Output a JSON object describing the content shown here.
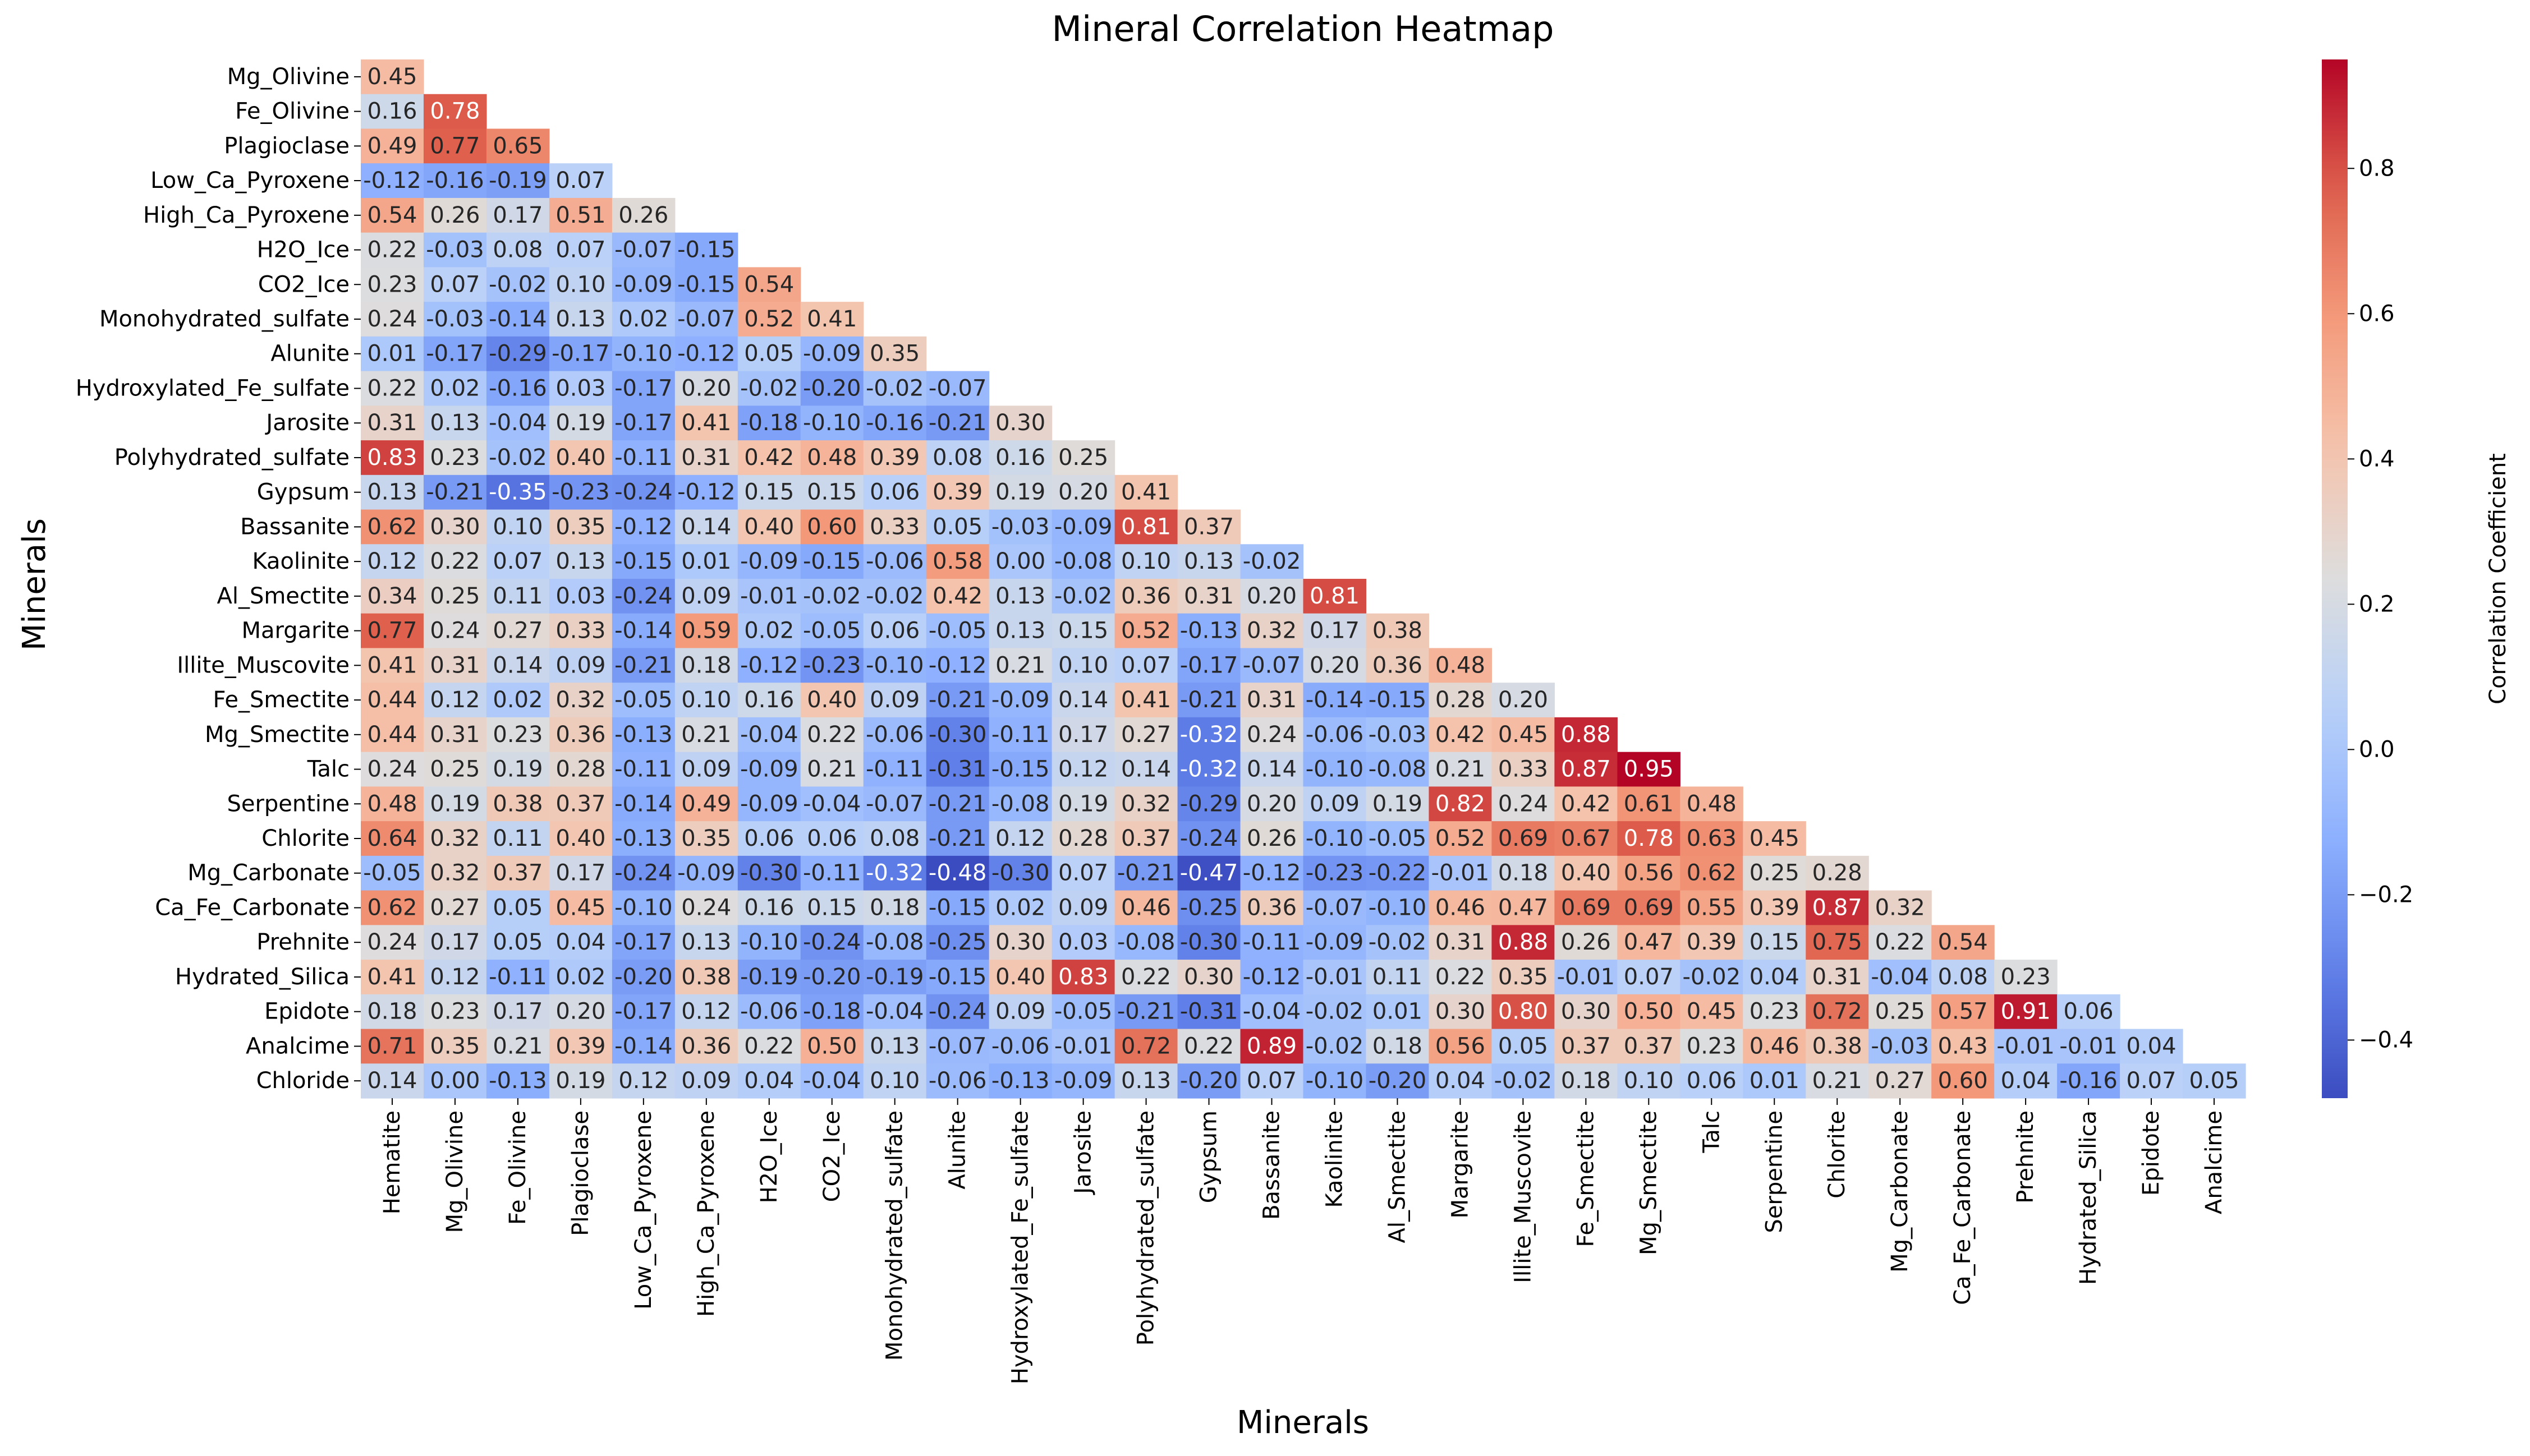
{
  "chart_data": {
    "type": "heatmap",
    "title": "Mineral Correlation Heatmap",
    "xlabel": "Minerals",
    "ylabel": "Minerals",
    "colorbar_label": "Correlation Coefficient",
    "colormap": "coolwarm",
    "vmin": -0.48,
    "vmax": 0.95,
    "colorbar_ticks": [
      "−0.4",
      "−0.2",
      "0.0",
      "0.2",
      "0.4",
      "0.6",
      "0.8"
    ],
    "colorbar_tick_values": [
      -0.4,
      -0.2,
      0.0,
      0.2,
      0.4,
      0.6,
      0.8
    ],
    "labels": [
      "Hematite",
      "Mg_Olivine",
      "Fe_Olivine",
      "Plagioclase",
      "Low_Ca_Pyroxene",
      "High_Ca_Pyroxene",
      "H2O_Ice",
      "CO2_Ice",
      "Monohydrated_sulfate",
      "Alunite",
      "Hydroxylated_Fe_sulfate",
      "Jarosite",
      "Polyhydrated_sulfate",
      "Gypsum",
      "Bassanite",
      "Kaolinite",
      "Al_Smectite",
      "Margarite",
      "Illite_Muscovite",
      "Fe_Smectite",
      "Mg_Smectite",
      "Talc",
      "Serpentine",
      "Chlorite",
      "Mg_Carbonate",
      "Ca_Fe_Carbonate",
      "Prehnite",
      "Hydrated_Silica",
      "Epidote",
      "Analcime",
      "Chloride"
    ],
    "values": [
      [
        0.45
      ],
      [
        0.16,
        0.78
      ],
      [
        0.49,
        0.77,
        0.65
      ],
      [
        -0.12,
        -0.16,
        -0.19,
        0.07
      ],
      [
        0.54,
        0.26,
        0.17,
        0.51,
        0.26
      ],
      [
        0.22,
        -0.03,
        0.08,
        0.07,
        -0.07,
        -0.15
      ],
      [
        0.23,
        0.07,
        -0.02,
        0.1,
        -0.09,
        -0.15,
        0.54
      ],
      [
        0.24,
        -0.03,
        -0.14,
        0.13,
        0.02,
        -0.07,
        0.52,
        0.41
      ],
      [
        0.01,
        -0.17,
        -0.29,
        -0.17,
        -0.1,
        -0.12,
        0.05,
        -0.09,
        0.35
      ],
      [
        0.22,
        0.02,
        -0.16,
        0.03,
        -0.17,
        0.2,
        -0.02,
        -0.2,
        -0.02,
        -0.07
      ],
      [
        0.31,
        0.13,
        -0.04,
        0.19,
        -0.17,
        0.41,
        -0.18,
        -0.1,
        -0.16,
        -0.21,
        0.3
      ],
      [
        0.83,
        0.23,
        -0.02,
        0.4,
        -0.11,
        0.31,
        0.42,
        0.48,
        0.39,
        0.08,
        0.16,
        0.25
      ],
      [
        0.13,
        -0.21,
        -0.35,
        -0.23,
        -0.24,
        -0.12,
        0.15,
        0.15,
        0.06,
        0.39,
        0.19,
        0.2,
        0.41
      ],
      [
        0.62,
        0.3,
        0.1,
        0.35,
        -0.12,
        0.14,
        0.4,
        0.6,
        0.33,
        0.05,
        -0.03,
        -0.09,
        0.81,
        0.37
      ],
      [
        0.12,
        0.22,
        0.07,
        0.13,
        -0.15,
        0.01,
        -0.09,
        -0.15,
        -0.06,
        0.58,
        -0.0,
        -0.08,
        0.1,
        0.13,
        -0.02
      ],
      [
        0.34,
        0.25,
        0.11,
        0.03,
        -0.24,
        0.09,
        -0.01,
        -0.02,
        -0.02,
        0.42,
        0.13,
        -0.02,
        0.36,
        0.31,
        0.2,
        0.81
      ],
      [
        0.77,
        0.24,
        0.27,
        0.33,
        -0.14,
        0.59,
        0.02,
        -0.05,
        0.06,
        -0.05,
        0.13,
        0.15,
        0.52,
        -0.13,
        0.32,
        0.17,
        0.38
      ],
      [
        0.41,
        0.31,
        0.14,
        0.09,
        -0.21,
        0.18,
        -0.12,
        -0.23,
        -0.1,
        -0.12,
        0.21,
        0.1,
        0.07,
        -0.17,
        -0.07,
        0.2,
        0.36,
        0.48
      ],
      [
        0.44,
        0.12,
        0.02,
        0.32,
        -0.05,
        0.1,
        0.16,
        0.4,
        0.09,
        -0.21,
        -0.09,
        0.14,
        0.41,
        -0.21,
        0.31,
        -0.14,
        -0.15,
        0.28,
        0.2
      ],
      [
        0.44,
        0.31,
        0.23,
        0.36,
        -0.13,
        0.21,
        -0.04,
        0.22,
        -0.06,
        -0.3,
        -0.11,
        0.17,
        0.27,
        -0.32,
        0.24,
        -0.06,
        -0.03,
        0.42,
        0.45,
        0.88
      ],
      [
        0.24,
        0.25,
        0.19,
        0.28,
        -0.11,
        0.09,
        -0.09,
        0.21,
        -0.11,
        -0.31,
        -0.15,
        0.12,
        0.14,
        -0.32,
        0.14,
        -0.1,
        -0.08,
        0.21,
        0.33,
        0.87,
        0.95
      ],
      [
        0.48,
        0.19,
        0.38,
        0.37,
        -0.14,
        0.49,
        -0.09,
        -0.04,
        -0.07,
        -0.21,
        -0.08,
        0.19,
        0.32,
        -0.29,
        0.2,
        0.09,
        0.19,
        0.82,
        0.24,
        0.42,
        0.61,
        0.48
      ],
      [
        0.64,
        0.32,
        0.11,
        0.4,
        -0.13,
        0.35,
        0.06,
        0.06,
        0.08,
        -0.21,
        0.12,
        0.28,
        0.37,
        -0.24,
        0.26,
        -0.1,
        -0.05,
        0.52,
        0.69,
        0.67,
        0.78,
        0.63,
        0.45
      ],
      [
        -0.05,
        0.32,
        0.37,
        0.17,
        -0.24,
        -0.09,
        -0.3,
        -0.11,
        -0.32,
        -0.48,
        -0.3,
        0.07,
        -0.21,
        -0.47,
        -0.12,
        -0.23,
        -0.22,
        -0.01,
        0.18,
        0.4,
        0.56,
        0.62,
        0.25,
        0.28
      ],
      [
        0.62,
        0.27,
        0.05,
        0.45,
        -0.1,
        0.24,
        0.16,
        0.15,
        0.18,
        -0.15,
        0.02,
        0.09,
        0.46,
        -0.25,
        0.36,
        -0.07,
        -0.1,
        0.46,
        0.47,
        0.69,
        0.69,
        0.55,
        0.39,
        0.87,
        0.32
      ],
      [
        0.24,
        0.17,
        0.05,
        0.04,
        -0.17,
        0.13,
        -0.1,
        -0.24,
        -0.08,
        -0.25,
        0.3,
        0.03,
        -0.08,
        -0.3,
        -0.11,
        -0.09,
        -0.02,
        0.31,
        0.88,
        0.26,
        0.47,
        0.39,
        0.15,
        0.75,
        0.22,
        0.54
      ],
      [
        0.41,
        0.12,
        -0.11,
        0.02,
        -0.2,
        0.38,
        -0.19,
        -0.2,
        -0.19,
        -0.15,
        0.4,
        0.83,
        0.22,
        0.3,
        -0.12,
        -0.01,
        0.11,
        0.22,
        0.35,
        -0.01,
        0.07,
        -0.02,
        0.04,
        0.31,
        -0.04,
        0.08,
        0.23
      ],
      [
        0.18,
        0.23,
        0.17,
        0.2,
        -0.17,
        0.12,
        -0.06,
        -0.18,
        -0.04,
        -0.24,
        0.09,
        -0.05,
        -0.21,
        -0.31,
        -0.04,
        -0.02,
        0.01,
        0.3,
        0.8,
        0.3,
        0.5,
        0.45,
        0.23,
        0.72,
        0.25,
        0.57,
        0.91,
        0.06
      ],
      [
        0.71,
        0.35,
        0.21,
        0.39,
        -0.14,
        0.36,
        0.22,
        0.5,
        0.13,
        -0.07,
        -0.06,
        -0.01,
        0.72,
        0.22,
        0.89,
        -0.02,
        0.18,
        0.56,
        0.05,
        0.37,
        0.37,
        0.23,
        0.46,
        0.38,
        -0.03,
        0.43,
        -0.01,
        -0.01,
        0.04
      ],
      [
        0.14,
        0.0,
        -0.13,
        0.19,
        0.12,
        0.09,
        0.04,
        -0.04,
        0.1,
        -0.06,
        -0.13,
        -0.09,
        0.13,
        -0.2,
        0.07,
        -0.1,
        -0.2,
        0.04,
        -0.02,
        0.18,
        0.1,
        0.06,
        0.01,
        0.21,
        0.27,
        0.6,
        0.04,
        -0.16,
        0.07,
        0.05
      ]
    ]
  }
}
